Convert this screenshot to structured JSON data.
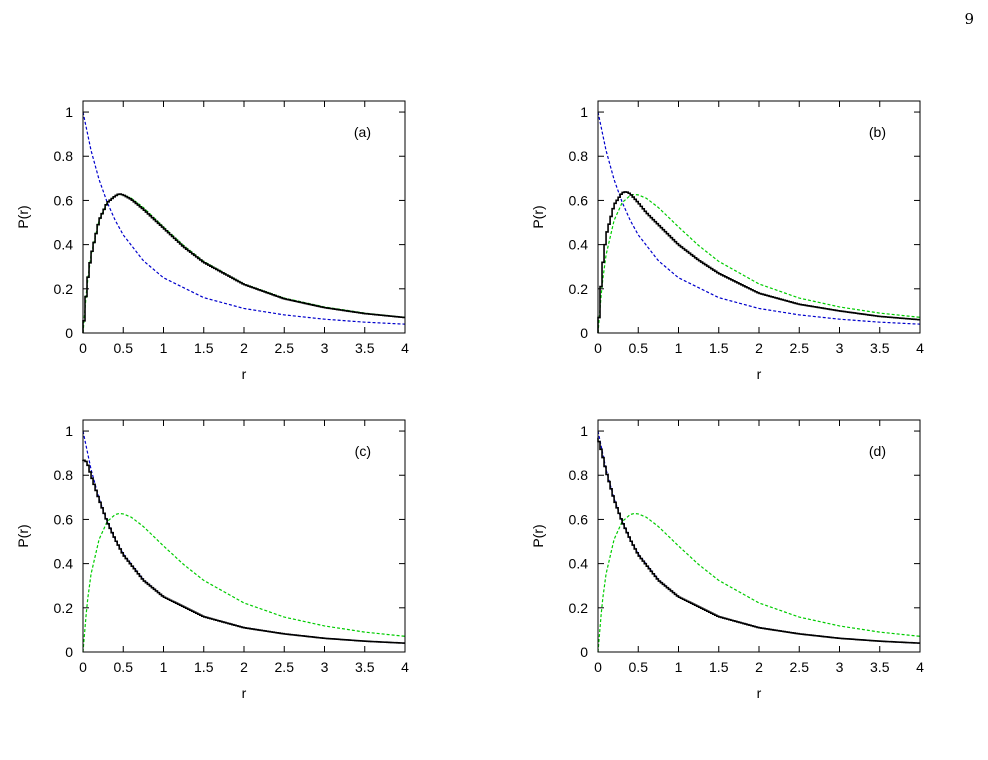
{
  "page": {
    "number": "9",
    "caption": ""
  },
  "chart_data": [
    {
      "type": "line",
      "panel_label": "(a)",
      "xlabel": "r",
      "ylabel": "P(r)",
      "xlim": [
        0,
        4
      ],
      "ylim": [
        0,
        1.05
      ],
      "xticks": [
        "0",
        "0.5",
        "1",
        "1.5",
        "2",
        "2.5",
        "3",
        "3.5",
        "4"
      ],
      "yticks": [
        "0",
        "0.2",
        "0.4",
        "0.6",
        "0.8",
        "1"
      ],
      "grid": false,
      "series": [
        {
          "color": "#0000cc",
          "style": "dashed",
          "x": [
            0,
            0.1,
            0.2,
            0.3,
            0.4,
            0.5,
            0.75,
            1,
            1.5,
            2,
            2.5,
            3,
            3.5,
            4
          ],
          "y": [
            1.0,
            0.826,
            0.694,
            0.592,
            0.51,
            0.444,
            0.327,
            0.25,
            0.16,
            0.111,
            0.082,
            0.0625,
            0.049,
            0.04
          ]
        },
        {
          "color": "#00cc00",
          "style": "dashed",
          "x": [
            0,
            0.05,
            0.1,
            0.2,
            0.3,
            0.4,
            0.45,
            0.5,
            0.6,
            0.75,
            1,
            1.25,
            1.5,
            2,
            2.5,
            3,
            3.5,
            4
          ],
          "y": [
            0,
            0.217,
            0.353,
            0.51,
            0.59,
            0.622,
            0.627,
            0.625,
            0.61,
            0.568,
            0.48,
            0.396,
            0.324,
            0.222,
            0.158,
            0.118,
            0.09,
            0.071
          ]
        },
        {
          "color": "#000000",
          "style": "step",
          "x": [
            0,
            0.05,
            0.1,
            0.2,
            0.3,
            0.4,
            0.45,
            0.5,
            0.6,
            0.75,
            1,
            1.25,
            1.5,
            2,
            2.5,
            3,
            3.5,
            4
          ],
          "y": [
            0,
            0.22,
            0.35,
            0.51,
            0.59,
            0.62,
            0.63,
            0.625,
            0.605,
            0.56,
            0.475,
            0.39,
            0.32,
            0.22,
            0.155,
            0.115,
            0.088,
            0.07
          ]
        }
      ]
    },
    {
      "type": "line",
      "panel_label": "(b)",
      "xlabel": "r",
      "ylabel": "P(r)",
      "xlim": [
        0,
        4
      ],
      "ylim": [
        0,
        1.05
      ],
      "xticks": [
        "0",
        "0.5",
        "1",
        "1.5",
        "2",
        "2.5",
        "3",
        "3.5",
        "4"
      ],
      "yticks": [
        "0",
        "0.2",
        "0.4",
        "0.6",
        "0.8",
        "1"
      ],
      "grid": false,
      "series": [
        {
          "color": "#0000cc",
          "style": "dashed",
          "x": [
            0,
            0.1,
            0.2,
            0.3,
            0.4,
            0.5,
            0.75,
            1,
            1.5,
            2,
            2.5,
            3,
            3.5,
            4
          ],
          "y": [
            1.0,
            0.826,
            0.694,
            0.592,
            0.51,
            0.444,
            0.327,
            0.25,
            0.16,
            0.111,
            0.082,
            0.0625,
            0.049,
            0.04
          ]
        },
        {
          "color": "#00cc00",
          "style": "dashed",
          "x": [
            0,
            0.05,
            0.1,
            0.2,
            0.3,
            0.4,
            0.45,
            0.5,
            0.6,
            0.75,
            1,
            1.25,
            1.5,
            2,
            2.5,
            3,
            3.5,
            4
          ],
          "y": [
            0,
            0.217,
            0.353,
            0.51,
            0.59,
            0.622,
            0.627,
            0.625,
            0.61,
            0.568,
            0.48,
            0.396,
            0.324,
            0.222,
            0.158,
            0.118,
            0.09,
            0.071
          ]
        },
        {
          "color": "#000000",
          "style": "step",
          "x": [
            0,
            0.05,
            0.1,
            0.2,
            0.3,
            0.35,
            0.4,
            0.5,
            0.6,
            0.75,
            1,
            1.25,
            1.5,
            2,
            2.5,
            3,
            3.5,
            4
          ],
          "y": [
            0,
            0.28,
            0.44,
            0.58,
            0.635,
            0.64,
            0.63,
            0.59,
            0.545,
            0.49,
            0.4,
            0.33,
            0.27,
            0.18,
            0.13,
            0.1,
            0.075,
            0.06
          ]
        }
      ]
    },
    {
      "type": "line",
      "panel_label": "(c)",
      "xlabel": "r",
      "ylabel": "P(r)",
      "xlim": [
        0,
        4
      ],
      "ylim": [
        0,
        1.05
      ],
      "xticks": [
        "0",
        "0.5",
        "1",
        "1.5",
        "2",
        "2.5",
        "3",
        "3.5",
        "4"
      ],
      "yticks": [
        "0",
        "0.2",
        "0.4",
        "0.6",
        "0.8",
        "1"
      ],
      "grid": false,
      "series": [
        {
          "color": "#0000cc",
          "style": "dashed",
          "x": [
            0,
            0.1,
            0.2,
            0.3,
            0.4,
            0.5,
            0.75,
            1,
            1.5,
            2,
            2.5,
            3,
            3.5,
            4
          ],
          "y": [
            1.0,
            0.826,
            0.694,
            0.592,
            0.51,
            0.444,
            0.327,
            0.25,
            0.16,
            0.111,
            0.082,
            0.0625,
            0.049,
            0.04
          ]
        },
        {
          "color": "#00cc00",
          "style": "dashed",
          "x": [
            0,
            0.05,
            0.1,
            0.2,
            0.3,
            0.4,
            0.45,
            0.5,
            0.6,
            0.75,
            1,
            1.25,
            1.5,
            2,
            2.5,
            3,
            3.5,
            4
          ],
          "y": [
            0,
            0.217,
            0.353,
            0.51,
            0.59,
            0.622,
            0.627,
            0.625,
            0.61,
            0.568,
            0.48,
            0.396,
            0.324,
            0.222,
            0.158,
            0.118,
            0.09,
            0.071
          ]
        },
        {
          "color": "#000000",
          "style": "step",
          "x": [
            0,
            0.05,
            0.1,
            0.2,
            0.3,
            0.4,
            0.5,
            0.75,
            1,
            1.5,
            2,
            2.5,
            3,
            3.5,
            4
          ],
          "y": [
            0.87,
            0.86,
            0.8,
            0.69,
            0.59,
            0.51,
            0.44,
            0.325,
            0.25,
            0.16,
            0.11,
            0.082,
            0.062,
            0.049,
            0.04
          ]
        }
      ]
    },
    {
      "type": "line",
      "panel_label": "(d)",
      "xlabel": "r",
      "ylabel": "P(r)",
      "xlim": [
        0,
        4
      ],
      "ylim": [
        0,
        1.05
      ],
      "xticks": [
        "0",
        "0.5",
        "1",
        "1.5",
        "2",
        "2.5",
        "3",
        "3.5",
        "4"
      ],
      "yticks": [
        "0",
        "0.2",
        "0.4",
        "0.6",
        "0.8",
        "1"
      ],
      "grid": false,
      "series": [
        {
          "color": "#0000cc",
          "style": "dashed",
          "x": [
            0,
            0.1,
            0.2,
            0.3,
            0.4,
            0.5,
            0.75,
            1,
            1.5,
            2,
            2.5,
            3,
            3.5,
            4
          ],
          "y": [
            1.0,
            0.826,
            0.694,
            0.592,
            0.51,
            0.444,
            0.327,
            0.25,
            0.16,
            0.111,
            0.082,
            0.0625,
            0.049,
            0.04
          ]
        },
        {
          "color": "#00cc00",
          "style": "dashed",
          "x": [
            0,
            0.05,
            0.1,
            0.2,
            0.3,
            0.4,
            0.45,
            0.5,
            0.6,
            0.75,
            1,
            1.25,
            1.5,
            2,
            2.5,
            3,
            3.5,
            4
          ],
          "y": [
            0,
            0.217,
            0.353,
            0.51,
            0.59,
            0.622,
            0.627,
            0.625,
            0.61,
            0.568,
            0.48,
            0.396,
            0.324,
            0.222,
            0.158,
            0.118,
            0.09,
            0.071
          ]
        },
        {
          "color": "#000000",
          "style": "step",
          "x": [
            0,
            0.05,
            0.1,
            0.2,
            0.3,
            0.4,
            0.5,
            0.75,
            1,
            1.5,
            2,
            2.5,
            3,
            3.5,
            4
          ],
          "y": [
            0.97,
            0.9,
            0.82,
            0.69,
            0.59,
            0.51,
            0.44,
            0.325,
            0.25,
            0.16,
            0.11,
            0.082,
            0.062,
            0.049,
            0.04
          ]
        }
      ]
    }
  ]
}
